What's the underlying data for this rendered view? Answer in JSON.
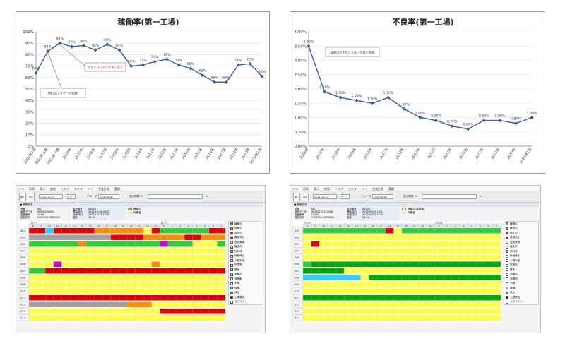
{
  "chart_data": [
    {
      "type": "line",
      "title": "稼働率(第一工場)",
      "categories": [
        "2002年1月",
        "2003年上期",
        "2003年下期",
        "2004年",
        "2005年",
        "2006年",
        "2007年",
        "2008年",
        "2009年",
        "2010年",
        "2011年",
        "2012年",
        "2013年",
        "2014年",
        "2015年",
        "2016年",
        "2017年",
        "2018年",
        "2019年",
        "2020年1月"
      ],
      "values": [
        64,
        83,
        90,
        87,
        88,
        84,
        89,
        84,
        70,
        71,
        74,
        76,
        71,
        68,
        62,
        56,
        56,
        71,
        72,
        61
      ],
      "data_labels": [
        "64%",
        "83%",
        "90%",
        "87%",
        "88%",
        "84%",
        "89%",
        "84%",
        "70%",
        "71%",
        "74%",
        "76%",
        "71%",
        "68%",
        "62%",
        "56%",
        "56%",
        "71%",
        "72%",
        "61%"
      ],
      "ylim": [
        0,
        100
      ],
      "yticks": [
        "0%",
        "10%",
        "20%",
        "30%",
        "40%",
        "50%",
        "60%",
        "70%",
        "80%",
        "90%",
        "100%"
      ],
      "annotations": [
        "エキスパートシステム導入",
        "MES導入+データ収集"
      ],
      "color": "#2f5ea6"
    },
    {
      "type": "line",
      "title": "不良率(第一工場)",
      "categories": [
        "2006年",
        "2007年",
        "2008年",
        "2009年",
        "2010年",
        "2011年",
        "2012年",
        "2013年",
        "2014年",
        "2015年",
        "2016年",
        "2017年",
        "2018年",
        "2019年",
        "2020年1月"
      ],
      "values": [
        3.5,
        1.9,
        1.7,
        1.6,
        1.5,
        1.7,
        1.3,
        1.0,
        0.9,
        0.7,
        0.6,
        0.9,
        0.9,
        0.8,
        1.0
      ],
      "data_labels": [
        "3.50%",
        "1.90%",
        "1.70%",
        "1.60%",
        "1.50%",
        "1.70%",
        "1.30%",
        "1.00%",
        "0.90%",
        "0.70%",
        "0.60%",
        "0.90%",
        "0.90%",
        "0.80%",
        "1.00%"
      ],
      "ylim": [
        0,
        4
      ],
      "yticks": [
        "0.00%",
        "0.50%",
        "1.00%",
        "1.50%",
        "2.00%",
        "2.50%",
        "3.00%",
        "3.50%",
        "4.00%"
      ],
      "annotations": [
        "品質ロスを見える化・改善を実施"
      ],
      "color": "#2f5ea6"
    }
  ],
  "app_left": {
    "menu": [
      "ﾌｧｲﾙ",
      "印刷",
      "表示",
      "設定",
      "ヘルプ",
      "モニタ",
      "ﾁｬｰﾄ",
      "生産計画",
      "実績"
    ],
    "toolbar": {
      "open_label": "開く",
      "save_label": "保存",
      "date": "2002/11/14",
      "shift_label": "日 ▾",
      "group_label": "グループ",
      "group_value": "G001第1組",
      "display_label": "表示間隔 2h",
      "pct": "%"
    },
    "panel_title": "■ 稼働状況",
    "info_labels": [
      "号機",
      "製品データ",
      "品番番号",
      "品名名称"
    ],
    "info_values": [
      "001",
      "M00S0230000",
      "01004",
      "CONTROL VERSION"
    ],
    "info2_labels": [
      "金型番号",
      "開始時刻",
      "計画時刻",
      "取数"
    ],
    "info2_values": [
      "01004",
      "2002/11/14 08:12",
      "2002/11/14 17:30",
      "06:00"
    ],
    "status": "稼働中",
    "status2": "作業者",
    "date_label": "11/14",
    "date_label2": "11/15",
    "hours": [
      "8",
      "9",
      "10",
      "11",
      "12",
      "13",
      "14",
      "15",
      "16",
      "17",
      "18",
      "19",
      "20",
      "21",
      "22",
      "23",
      "0",
      "1",
      "2",
      "3",
      "4",
      "5",
      "6",
      "7"
    ],
    "machines": [
      "001",
      "002",
      "003",
      "004",
      "005",
      "006",
      "007",
      "008",
      "009",
      "010",
      "011",
      "012",
      "013",
      "014"
    ],
    "legend": [
      {
        "label": "稼働中",
        "color": "#33cc33"
      },
      {
        "label": "段取中",
        "color": "#ff8c00"
      },
      {
        "label": "停止中",
        "color": "#cc00cc"
      },
      {
        "label": "異常停止",
        "color": "#e00000"
      },
      {
        "label": "品質異常",
        "color": "#f0f0f0"
      },
      {
        "label": "保全中",
        "color": "#ffff44"
      },
      {
        "label": "材料待",
        "color": "#a0a0a0"
      },
      {
        "label": "計画停止",
        "color": "#ffffff"
      },
      {
        "label": "人員不足",
        "color": "#ffffff"
      },
      {
        "label": "試運転",
        "color": "#ffffff"
      },
      {
        "label": "昼休",
        "color": "#ffffff"
      },
      {
        "label": "会議中",
        "color": "#ffffff"
      },
      {
        "label": "非稼動",
        "color": "#ffffff"
      },
      {
        "label": "不明",
        "color": "#ffffff"
      },
      {
        "label": "待機",
        "color": "#33ccff"
      },
      {
        "label": "休止",
        "color": "#00aa00"
      },
      {
        "label": "上限警告",
        "color": "#000000"
      },
      {
        "label": "オフライン",
        "color": "#ffffff"
      }
    ]
  },
  "app_right": {
    "menu": [
      "ﾌｧｲﾙ",
      "印刷",
      "表示",
      "設定",
      "ヘルプ",
      "モニタ",
      "ﾁｬｰﾄ",
      "生産計画",
      "実績"
    ],
    "toolbar": {
      "open_label": "開く",
      "save_label": "保存",
      "date": "2012/02/02",
      "shift_label": "日 ▾",
      "group_label": "グループ",
      "group_value": "G001第1組",
      "display_label": "表示間隔 2h",
      "pct": "%"
    },
    "panel_title": "■ 稼働状況",
    "info_labels": [
      "号機",
      "製品データ",
      "品番番号",
      "品名名称"
    ],
    "info_values": [
      "001",
      "M00S0720110008",
      "01004",
      "CONTROL VERSION"
    ],
    "info2_labels": [
      "金型番号",
      "開始時刻",
      "計画時刻",
      "取数"
    ],
    "info2_values": [
      "01004",
      "2012/02/02 10:01",
      "2012/02/02 18:12",
      "01:41"
    ],
    "status": "稼働中(高稼働)",
    "status2": "作業者",
    "date_label": "02/02",
    "date_label2": "02/03",
    "hours": [
      "8",
      "9",
      "10",
      "11",
      "12",
      "13",
      "14",
      "15",
      "16",
      "17",
      "18",
      "19",
      "20",
      "21",
      "22",
      "23",
      "0",
      "1",
      "2",
      "3",
      "4",
      "5",
      "6",
      "7"
    ],
    "machines": [
      "001",
      "002",
      "003",
      "004",
      "005",
      "006",
      "007",
      "008",
      "009",
      "010",
      "011",
      "012",
      "013",
      "014"
    ],
    "legend": [
      {
        "label": "稼働中",
        "color": "#33cc33"
      },
      {
        "label": "段取中",
        "color": "#ff8c00"
      },
      {
        "label": "停止中",
        "color": "#cc00cc"
      },
      {
        "label": "異常停止",
        "color": "#e00000"
      },
      {
        "label": "品質異常",
        "color": "#f0f0f0"
      },
      {
        "label": "保全中",
        "color": "#ffff44"
      },
      {
        "label": "材料待",
        "color": "#a0a0a0"
      },
      {
        "label": "計画停止",
        "color": "#ffffff"
      },
      {
        "label": "人員不足",
        "color": "#ffffff"
      },
      {
        "label": "試運転",
        "color": "#ffffff"
      },
      {
        "label": "昼休",
        "color": "#ffffff"
      },
      {
        "label": "会議中",
        "color": "#ffffff"
      },
      {
        "label": "非稼動",
        "color": "#ffffff"
      },
      {
        "label": "不明",
        "color": "#ffffff"
      },
      {
        "label": "待機",
        "color": "#33ccff"
      },
      {
        "label": "休止",
        "color": "#00aa00"
      },
      {
        "label": "上限警告",
        "color": "#000000"
      },
      {
        "label": "オフライン",
        "color": "#ffffff"
      }
    ]
  }
}
